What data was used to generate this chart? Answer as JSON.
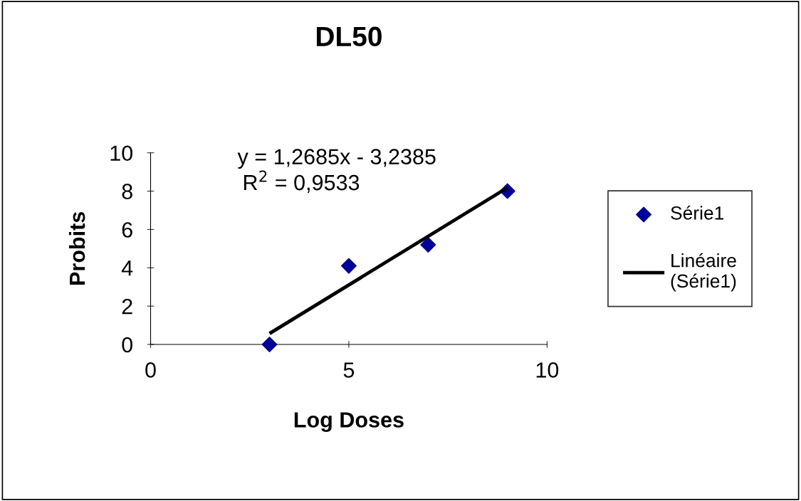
{
  "chart_data": {
    "type": "scatter",
    "title": "DL50",
    "xlabel": "Log Doses",
    "ylabel": "Probits",
    "xlim": [
      0,
      10
    ],
    "xticks": [
      0,
      5,
      10
    ],
    "ylim": [
      0,
      10
    ],
    "yticks": [
      0,
      2,
      4,
      6,
      8,
      10
    ],
    "series": [
      {
        "name": "Série1",
        "marker": "diamond",
        "color": "#000099",
        "x": [
          3,
          5,
          7,
          9
        ],
        "values": [
          0,
          4.1,
          5.2,
          8
        ]
      },
      {
        "name": "Linéaire\n(Série1)",
        "type": "line",
        "marker": "none",
        "line_style": "solid",
        "color": "#000000",
        "x": [
          3,
          9
        ],
        "values": [
          0.57,
          8.18
        ]
      }
    ],
    "annotations": [
      "y = 1,2685x - 3,2385",
      "R$^{2}$ = 0,9533"
    ],
    "grid": false,
    "legend": "right"
  }
}
